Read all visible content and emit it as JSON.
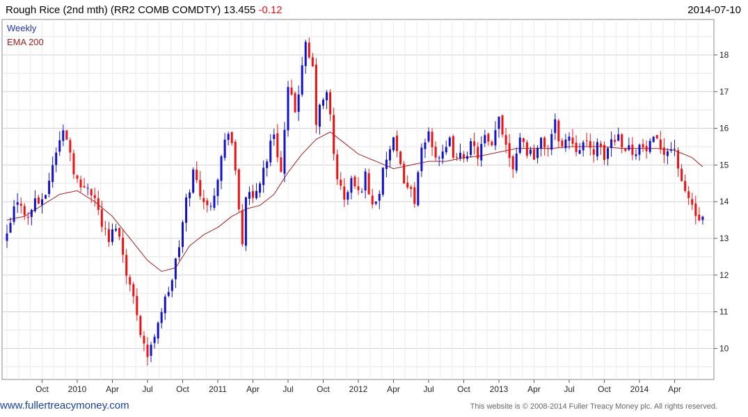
{
  "header": {
    "title": "Rough Rice (2nd mth) (RR2 COMB COMDTY) 13.455",
    "change": "-0.12",
    "date": "2014-07-10"
  },
  "footer": {
    "website": "www.fullertreacymoney.com",
    "copyright": "This website is © 2008-2014 Fuller Treacy Money plc. All rights reserved."
  },
  "colors": {
    "up": "#1111cc",
    "down": "#ee1111",
    "ema": "#a02020",
    "grid": "#cfcfcf",
    "legend_weekly": "#2233aa",
    "legend_ema": "#a02020"
  },
  "chart_data": {
    "type": "candlestick",
    "title": "Rough Rice (2nd mth) (RR2 COMB COMDTY) 13.455",
    "legend": [
      "Weekly",
      "EMA 200"
    ],
    "ylim": [
      9.3,
      19.3
    ],
    "yticks": [
      10,
      11,
      12,
      13,
      14,
      15,
      16,
      17,
      18
    ],
    "xticks": [
      {
        "w": 10,
        "label": "Oct"
      },
      {
        "w": 20,
        "label": "2010"
      },
      {
        "w": 30,
        "label": "Apr"
      },
      {
        "w": 40,
        "label": "Jul"
      },
      {
        "w": 50,
        "label": "Oct"
      },
      {
        "w": 60,
        "label": "2011"
      },
      {
        "w": 70,
        "label": "Apr"
      },
      {
        "w": 80,
        "label": "Jul"
      },
      {
        "w": 90,
        "label": "Oct"
      },
      {
        "w": 100,
        "label": "2012"
      },
      {
        "w": 110,
        "label": "Apr"
      },
      {
        "w": 120,
        "label": "Jul"
      },
      {
        "w": 130,
        "label": "Oct"
      },
      {
        "w": 140,
        "label": "2013"
      },
      {
        "w": 150,
        "label": "Apr"
      },
      {
        "w": 160,
        "label": "Jul"
      },
      {
        "w": 170,
        "label": "Oct"
      },
      {
        "w": 180,
        "label": "2014"
      },
      {
        "w": 190,
        "label": "Apr"
      }
    ],
    "x_range_weeks": [
      -10,
      200
    ],
    "close_anchors": [
      [
        0,
        13.0
      ],
      [
        2,
        13.8
      ],
      [
        4,
        14.0
      ],
      [
        6,
        13.5
      ],
      [
        8,
        14.1
      ],
      [
        10,
        13.9
      ],
      [
        12,
        14.6
      ],
      [
        14,
        15.4
      ],
      [
        16,
        15.9
      ],
      [
        17,
        15.8
      ],
      [
        19,
        14.9
      ],
      [
        21,
        14.3
      ],
      [
        23,
        14.5
      ],
      [
        25,
        14.1
      ],
      [
        27,
        13.4
      ],
      [
        29,
        12.9
      ],
      [
        31,
        13.4
      ],
      [
        33,
        12.6
      ],
      [
        35,
        11.7
      ],
      [
        37,
        11.0
      ],
      [
        38,
        10.5
      ],
      [
        40,
        9.8
      ],
      [
        41,
        10.0
      ],
      [
        43,
        10.8
      ],
      [
        45,
        11.3
      ],
      [
        47,
        11.9
      ],
      [
        49,
        12.8
      ],
      [
        51,
        14.0
      ],
      [
        53,
        14.8
      ],
      [
        55,
        14.3
      ],
      [
        57,
        13.8
      ],
      [
        59,
        14.3
      ],
      [
        61,
        15.2
      ],
      [
        63,
        16.0
      ],
      [
        64,
        15.6
      ],
      [
        66,
        13.8
      ],
      [
        67,
        12.9
      ],
      [
        68,
        14.2
      ],
      [
        70,
        14.0
      ],
      [
        72,
        14.6
      ],
      [
        74,
        15.2
      ],
      [
        76,
        15.9
      ],
      [
        78,
        14.8
      ],
      [
        80,
        17.0
      ],
      [
        82,
        16.5
      ],
      [
        84,
        17.6
      ],
      [
        85,
        18.2
      ],
      [
        87,
        17.6
      ],
      [
        88,
        16.2
      ],
      [
        90,
        16.8
      ],
      [
        91,
        16.9
      ],
      [
        92,
        16.3
      ],
      [
        93,
        15.3
      ],
      [
        94,
        14.7
      ],
      [
        96,
        14.0
      ],
      [
        98,
        14.6
      ],
      [
        100,
        14.2
      ],
      [
        102,
        14.7
      ],
      [
        104,
        13.9
      ],
      [
        106,
        14.3
      ],
      [
        108,
        15.2
      ],
      [
        110,
        15.6
      ],
      [
        112,
        14.9
      ],
      [
        114,
        14.4
      ],
      [
        116,
        14.1
      ],
      [
        118,
        15.3
      ],
      [
        120,
        15.9
      ],
      [
        122,
        15.3
      ],
      [
        124,
        15.2
      ],
      [
        126,
        15.6
      ],
      [
        128,
        15.1
      ],
      [
        130,
        15.3
      ],
      [
        132,
        15.5
      ],
      [
        134,
        15.3
      ],
      [
        136,
        15.7
      ],
      [
        138,
        15.4
      ],
      [
        140,
        16.3
      ],
      [
        142,
        15.6
      ],
      [
        144,
        15.0
      ],
      [
        146,
        15.8
      ],
      [
        148,
        15.4
      ],
      [
        150,
        15.3
      ],
      [
        152,
        15.6
      ],
      [
        154,
        15.5
      ],
      [
        156,
        16.1
      ],
      [
        158,
        15.5
      ],
      [
        160,
        15.8
      ],
      [
        162,
        15.5
      ],
      [
        164,
        15.6
      ],
      [
        166,
        15.4
      ],
      [
        168,
        15.5
      ],
      [
        170,
        15.2
      ],
      [
        172,
        15.7
      ],
      [
        174,
        15.8
      ],
      [
        176,
        15.5
      ],
      [
        178,
        15.4
      ],
      [
        180,
        15.5
      ],
      [
        182,
        15.4
      ],
      [
        184,
        15.6
      ],
      [
        186,
        15.5
      ],
      [
        188,
        15.4
      ],
      [
        190,
        15.5
      ],
      [
        192,
        14.4
      ],
      [
        194,
        14.1
      ],
      [
        195,
        13.9
      ],
      [
        196,
        13.6
      ],
      [
        197,
        13.5
      ],
      [
        198,
        13.455
      ]
    ],
    "ema_anchors": [
      [
        0,
        13.5
      ],
      [
        5,
        13.6
      ],
      [
        10,
        13.9
      ],
      [
        15,
        14.2
      ],
      [
        20,
        14.3
      ],
      [
        25,
        14.0
      ],
      [
        30,
        13.6
      ],
      [
        35,
        13.0
      ],
      [
        40,
        12.4
      ],
      [
        44,
        12.1
      ],
      [
        48,
        12.2
      ],
      [
        52,
        12.8
      ],
      [
        56,
        13.1
      ],
      [
        60,
        13.3
      ],
      [
        64,
        13.6
      ],
      [
        68,
        13.8
      ],
      [
        72,
        13.9
      ],
      [
        76,
        14.2
      ],
      [
        80,
        14.8
      ],
      [
        84,
        15.3
      ],
      [
        88,
        15.7
      ],
      [
        92,
        15.9
      ],
      [
        96,
        15.6
      ],
      [
        100,
        15.3
      ],
      [
        105,
        15.1
      ],
      [
        110,
        14.9
      ],
      [
        115,
        15.0
      ],
      [
        120,
        15.1
      ],
      [
        125,
        15.1
      ],
      [
        130,
        15.2
      ],
      [
        135,
        15.25
      ],
      [
        140,
        15.35
      ],
      [
        145,
        15.45
      ],
      [
        150,
        15.45
      ],
      [
        155,
        15.45
      ],
      [
        160,
        15.5
      ],
      [
        165,
        15.5
      ],
      [
        170,
        15.5
      ],
      [
        175,
        15.45
      ],
      [
        180,
        15.45
      ],
      [
        185,
        15.45
      ],
      [
        190,
        15.4
      ],
      [
        195,
        15.2
      ],
      [
        198,
        14.95
      ]
    ]
  }
}
